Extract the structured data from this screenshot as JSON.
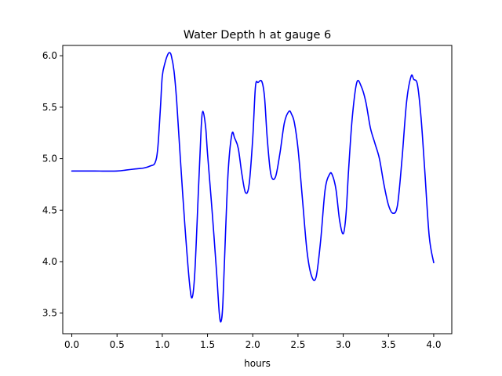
{
  "chart_data": {
    "type": "line",
    "title": "Water Depth h at gauge 6",
    "xlabel": "hours",
    "ylabel": "",
    "xlim": [
      -0.1,
      4.2
    ],
    "ylim": [
      3.3,
      6.1
    ],
    "xticks": [
      0.0,
      0.5,
      1.0,
      1.5,
      2.0,
      2.5,
      3.0,
      3.5,
      4.0
    ],
    "xtick_labels": [
      "0.0",
      "0.5",
      "1.0",
      "1.5",
      "2.0",
      "2.5",
      "3.0",
      "3.5",
      "4.0"
    ],
    "yticks": [
      3.5,
      4.0,
      4.5,
      5.0,
      5.5,
      6.0
    ],
    "ytick_labels": [
      "3.5",
      "4.0",
      "4.5",
      "5.0",
      "5.5",
      "6.0"
    ],
    "grid": false,
    "series": [
      {
        "color": "#0000ff",
        "x": [
          0.0,
          0.25,
          0.5,
          0.6,
          0.7,
          0.8,
          0.87,
          0.92,
          0.95,
          0.98,
          1.0,
          1.03,
          1.06,
          1.08,
          1.1,
          1.13,
          1.16,
          1.2,
          1.25,
          1.3,
          1.33,
          1.36,
          1.4,
          1.43,
          1.45,
          1.48,
          1.5,
          1.55,
          1.6,
          1.63,
          1.65,
          1.67,
          1.7,
          1.73,
          1.77,
          1.8,
          1.84,
          1.88,
          1.92,
          1.96,
          2.0,
          2.03,
          2.06,
          2.1,
          2.13,
          2.16,
          2.2,
          2.25,
          2.3,
          2.35,
          2.4,
          2.43,
          2.46,
          2.5,
          2.55,
          2.6,
          2.65,
          2.7,
          2.75,
          2.8,
          2.85,
          2.88,
          2.92,
          2.96,
          3.0,
          3.03,
          3.06,
          3.1,
          3.15,
          3.2,
          3.25,
          3.3,
          3.35,
          3.4,
          3.45,
          3.5,
          3.55,
          3.6,
          3.65,
          3.7,
          3.75,
          3.78,
          3.82,
          3.86,
          3.9,
          3.95,
          4.0
        ],
        "y": [
          4.88,
          4.88,
          4.88,
          4.89,
          4.9,
          4.91,
          4.93,
          4.96,
          5.1,
          5.5,
          5.8,
          5.93,
          6.01,
          6.03,
          6.0,
          5.85,
          5.55,
          5.0,
          4.35,
          3.8,
          3.65,
          3.9,
          4.7,
          5.3,
          5.46,
          5.3,
          5.05,
          4.5,
          3.9,
          3.5,
          3.42,
          3.6,
          4.3,
          4.9,
          5.24,
          5.2,
          5.1,
          4.85,
          4.67,
          4.75,
          5.2,
          5.7,
          5.74,
          5.75,
          5.6,
          5.2,
          4.85,
          4.82,
          5.05,
          5.35,
          5.46,
          5.43,
          5.35,
          5.1,
          4.6,
          4.1,
          3.86,
          3.85,
          4.2,
          4.7,
          4.85,
          4.84,
          4.7,
          4.4,
          4.27,
          4.45,
          4.9,
          5.4,
          5.74,
          5.7,
          5.55,
          5.3,
          5.15,
          5.0,
          4.75,
          4.55,
          4.47,
          4.55,
          5.0,
          5.55,
          5.8,
          5.77,
          5.72,
          5.4,
          4.9,
          4.25,
          3.99
        ]
      }
    ]
  }
}
